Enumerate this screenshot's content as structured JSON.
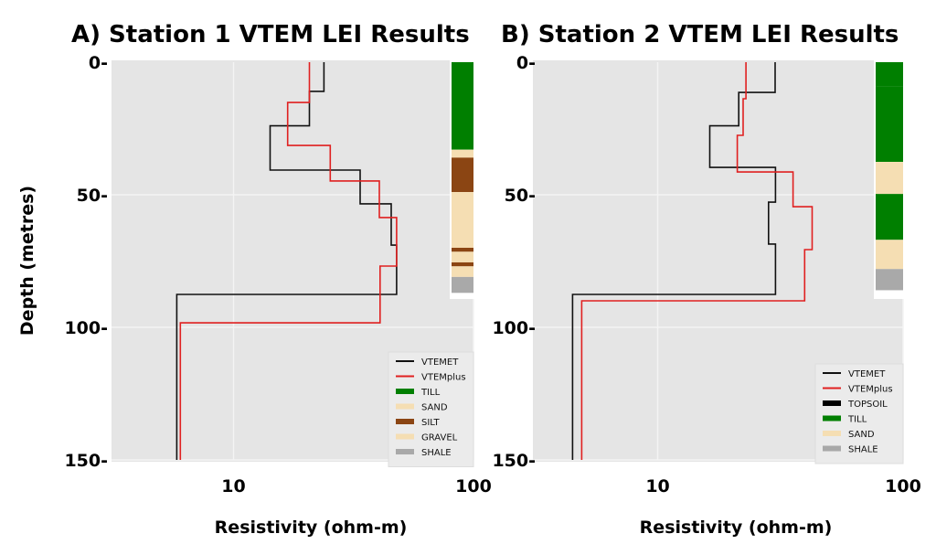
{
  "colors": {
    "VTEMET": "#111111",
    "VTEMplus": "#e02020",
    "TOPSOIL": "#000000",
    "TILL": "#007f00",
    "SAND": "#f5deb3",
    "SILT": "#8b4513",
    "GRAVEL": "#f5deb3",
    "SHALE": "#a9a9a9",
    "background": "#e5e5e5"
  },
  "chart_data": [
    {
      "type": "line",
      "title": "A) Station 1  VTEM LEI Results",
      "xlabel": "Resistivity (ohm-m)",
      "ylabel": "Depth (metres)",
      "xscale": "log",
      "xlim": [
        3.1,
        100
      ],
      "ylim": [
        150,
        0
      ],
      "x_ticks": [
        "10",
        "100"
      ],
      "y_ticks": [
        "0-",
        "50-",
        "100-",
        "150-"
      ],
      "grid": true,
      "legend_position": "bottom-right",
      "series": [
        {
          "name": "VTEMET",
          "steps": [
            {
              "r": 23.8,
              "top": 0,
              "bottom": 11
            },
            {
              "r": 20.7,
              "top": 11,
              "bottom": 24
            },
            {
              "r": 14.2,
              "top": 24,
              "bottom": 40.7
            },
            {
              "r": 33.7,
              "top": 40.7,
              "bottom": 53.4
            },
            {
              "r": 45.4,
              "top": 53.4,
              "bottom": 69
            },
            {
              "r": 47.8,
              "top": 69,
              "bottom": 87.6
            },
            {
              "r": 5.8,
              "top": 87.6,
              "bottom": 150
            }
          ]
        },
        {
          "name": "VTEMplus",
          "steps": [
            {
              "r": 20.7,
              "top": 0,
              "bottom": 15.2
            },
            {
              "r": 16.8,
              "top": 15.2,
              "bottom": 31.4
            },
            {
              "r": 25.3,
              "top": 31.4,
              "bottom": 44.8
            },
            {
              "r": 40.5,
              "top": 44.8,
              "bottom": 58.6
            },
            {
              "r": 47.8,
              "top": 58.6,
              "bottom": 76.9
            },
            {
              "r": 40.8,
              "top": 76.9,
              "bottom": 98.3
            },
            {
              "r": 6.0,
              "top": 98.3,
              "bottom": 150
            }
          ]
        }
      ],
      "lithology": [
        {
          "unit": "TILL",
          "top": 0,
          "bottom": 33
        },
        {
          "unit": "SAND",
          "top": 33,
          "bottom": 36
        },
        {
          "unit": "SILT",
          "top": 36,
          "bottom": 49
        },
        {
          "unit": "SAND",
          "top": 49,
          "bottom": 70
        },
        {
          "unit": "SILT",
          "top": 70,
          "bottom": 71.5
        },
        {
          "unit": "SAND",
          "top": 71.5,
          "bottom": 75.5
        },
        {
          "unit": "SILT",
          "top": 75.5,
          "bottom": 77
        },
        {
          "unit": "GRAVEL",
          "top": 77,
          "bottom": 81
        },
        {
          "unit": "SHALE",
          "top": 81,
          "bottom": 87
        }
      ],
      "legend": [
        "VTEMET",
        "VTEMplus",
        "TILL",
        "SAND",
        "SILT",
        "GRAVEL",
        "SHALE"
      ]
    },
    {
      "type": "line",
      "title": "B) Station 2  VTEM LEI Results",
      "xlabel": "Resistivity (ohm-m)",
      "ylabel": "",
      "xscale": "log",
      "xlim": [
        3.1,
        100
      ],
      "ylim": [
        150,
        0
      ],
      "x_ticks": [
        "10",
        "100"
      ],
      "y_ticks": [
        "0-",
        "50-",
        "100-",
        "150-"
      ],
      "grid": true,
      "legend_position": "bottom-right",
      "series": [
        {
          "name": "VTEMET",
          "steps": [
            {
              "r": 30.1,
              "top": 0,
              "bottom": 11.4
            },
            {
              "r": 21.4,
              "top": 11.4,
              "bottom": 24
            },
            {
              "r": 16.3,
              "top": 24,
              "bottom": 39.7
            },
            {
              "r": 30.2,
              "top": 39.7,
              "bottom": 52.8
            },
            {
              "r": 28.3,
              "top": 52.8,
              "bottom": 68.6
            },
            {
              "r": 30.2,
              "top": 68.6,
              "bottom": 87.6
            },
            {
              "r": 4.5,
              "top": 87.6,
              "bottom": 150
            }
          ]
        },
        {
          "name": "VTEMplus",
          "steps": [
            {
              "r": 22.9,
              "top": 0,
              "bottom": 13.8
            },
            {
              "r": 22.3,
              "top": 13.8,
              "bottom": 27.6
            },
            {
              "r": 21.1,
              "top": 27.6,
              "bottom": 41.4
            },
            {
              "r": 35.6,
              "top": 41.4,
              "bottom": 54.5
            },
            {
              "r": 42.6,
              "top": 54.5,
              "bottom": 70.7
            },
            {
              "r": 39.7,
              "top": 70.7,
              "bottom": 90
            },
            {
              "r": 4.9,
              "top": 90,
              "bottom": 150
            }
          ]
        }
      ],
      "lithology": [
        {
          "unit": "TILL",
          "top": 0,
          "bottom": 9
        },
        {
          "unit": "TILL",
          "top": 9,
          "bottom": 37.6
        },
        {
          "unit": "SAND",
          "top": 37.6,
          "bottom": 49.7
        },
        {
          "unit": "TILL",
          "top": 49.7,
          "bottom": 67
        },
        {
          "unit": "SAND",
          "top": 67,
          "bottom": 78
        },
        {
          "unit": "SHALE",
          "top": 78,
          "bottom": 86
        }
      ],
      "legend": [
        "VTEMET",
        "VTEMplus",
        "TOPSOIL",
        "TILL",
        "SAND",
        "SHALE"
      ]
    }
  ]
}
